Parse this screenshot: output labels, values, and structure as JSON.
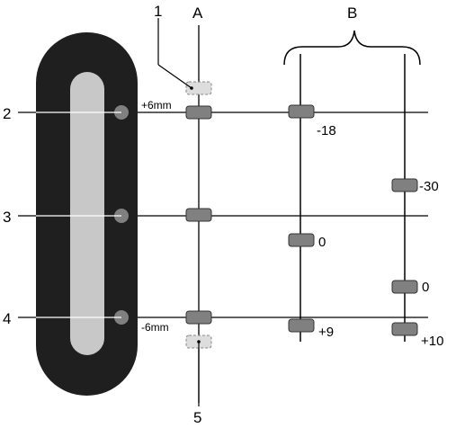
{
  "labels": {
    "callout_1": "1",
    "callout_2": "2",
    "callout_3": "3",
    "callout_4": "4",
    "callout_5": "5",
    "column_a": "A",
    "column_b": "B",
    "plus_6mm": "+6mm",
    "minus_6mm": "-6mm",
    "val_minus18": "-18",
    "val_0_mid": "0",
    "val_plus9": "+9",
    "val_minus30": "-30",
    "val_0_right": "0",
    "val_plus10": "+10"
  },
  "colors": {
    "bar_outer": "#1f1f1f",
    "bar_inner": "#c8c8c8",
    "marker_fill": "#808080",
    "marker_dashed_fill": "#dddddd",
    "line": "#000000"
  }
}
